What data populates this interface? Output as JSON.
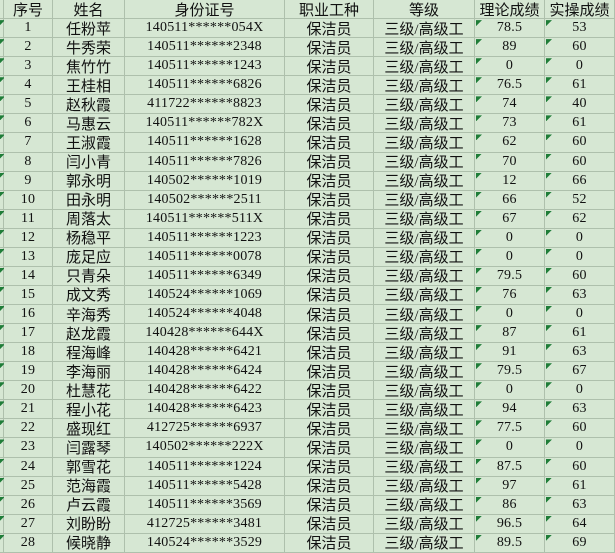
{
  "table": {
    "columns": [
      {
        "key": "index",
        "label": "序号"
      },
      {
        "key": "name",
        "label": "姓名"
      },
      {
        "key": "id_number",
        "label": "身份证号"
      },
      {
        "key": "occupation",
        "label": "职业工种"
      },
      {
        "key": "level",
        "label": "等级"
      },
      {
        "key": "theory_score",
        "label": "理论成绩"
      },
      {
        "key": "practical_score",
        "label": "实操成绩"
      }
    ],
    "rows": [
      {
        "index": "1",
        "name": "任粉苹",
        "id_number": "140511******054X",
        "occupation": "保洁员",
        "level": "三级/高级工",
        "theory_score": "78.5",
        "practical_score": "53"
      },
      {
        "index": "2",
        "name": "牛秀荣",
        "id_number": "140511******2348",
        "occupation": "保洁员",
        "level": "三级/高级工",
        "theory_score": "89",
        "practical_score": "60"
      },
      {
        "index": "3",
        "name": "焦竹竹",
        "id_number": "140511******1243",
        "occupation": "保洁员",
        "level": "三级/高级工",
        "theory_score": "0",
        "practical_score": "0"
      },
      {
        "index": "4",
        "name": "王桂相",
        "id_number": "140511******6826",
        "occupation": "保洁员",
        "level": "三级/高级工",
        "theory_score": "76.5",
        "practical_score": "61"
      },
      {
        "index": "5",
        "name": "赵秋霞",
        "id_number": "411722******8823",
        "occupation": "保洁员",
        "level": "三级/高级工",
        "theory_score": "74",
        "practical_score": "40"
      },
      {
        "index": "6",
        "name": "马惠云",
        "id_number": "140511******782X",
        "occupation": "保洁员",
        "level": "三级/高级工",
        "theory_score": "73",
        "practical_score": "61"
      },
      {
        "index": "7",
        "name": "王淑霞",
        "id_number": "140511******1628",
        "occupation": "保洁员",
        "level": "三级/高级工",
        "theory_score": "62",
        "practical_score": "60"
      },
      {
        "index": "8",
        "name": "闫小青",
        "id_number": "140511******7826",
        "occupation": "保洁员",
        "level": "三级/高级工",
        "theory_score": "70",
        "practical_score": "60"
      },
      {
        "index": "9",
        "name": "郭永明",
        "id_number": "140502******1019",
        "occupation": "保洁员",
        "level": "三级/高级工",
        "theory_score": "12",
        "practical_score": "66"
      },
      {
        "index": "10",
        "name": "田永明",
        "id_number": "140502******2511",
        "occupation": "保洁员",
        "level": "三级/高级工",
        "theory_score": "66",
        "practical_score": "52"
      },
      {
        "index": "11",
        "name": "周落太",
        "id_number": "140511******511X",
        "occupation": "保洁员",
        "level": "三级/高级工",
        "theory_score": "67",
        "practical_score": "62"
      },
      {
        "index": "12",
        "name": "杨稳平",
        "id_number": "140511******1223",
        "occupation": "保洁员",
        "level": "三级/高级工",
        "theory_score": "0",
        "practical_score": "0"
      },
      {
        "index": "13",
        "name": "庞足应",
        "id_number": "140511******0078",
        "occupation": "保洁员",
        "level": "三级/高级工",
        "theory_score": "0",
        "practical_score": "0"
      },
      {
        "index": "14",
        "name": "只青朵",
        "id_number": "140511******6349",
        "occupation": "保洁员",
        "level": "三级/高级工",
        "theory_score": "79.5",
        "practical_score": "60"
      },
      {
        "index": "15",
        "name": "成文秀",
        "id_number": "140524******1069",
        "occupation": "保洁员",
        "level": "三级/高级工",
        "theory_score": "76",
        "practical_score": "63"
      },
      {
        "index": "16",
        "name": "辛海秀",
        "id_number": "140524******4048",
        "occupation": "保洁员",
        "level": "三级/高级工",
        "theory_score": "0",
        "practical_score": "0"
      },
      {
        "index": "17",
        "name": "赵龙霞",
        "id_number": "140428******644X",
        "occupation": "保洁员",
        "level": "三级/高级工",
        "theory_score": "87",
        "practical_score": "61"
      },
      {
        "index": "18",
        "name": "程海峰",
        "id_number": "140428******6421",
        "occupation": "保洁员",
        "level": "三级/高级工",
        "theory_score": "91",
        "practical_score": "63"
      },
      {
        "index": "19",
        "name": "李海丽",
        "id_number": "140428******6424",
        "occupation": "保洁员",
        "level": "三级/高级工",
        "theory_score": "79.5",
        "practical_score": "67"
      },
      {
        "index": "20",
        "name": "杜慧花",
        "id_number": "140428******6422",
        "occupation": "保洁员",
        "level": "三级/高级工",
        "theory_score": "0",
        "practical_score": "0"
      },
      {
        "index": "21",
        "name": "程小花",
        "id_number": "140428******6423",
        "occupation": "保洁员",
        "level": "三级/高级工",
        "theory_score": "94",
        "practical_score": "63"
      },
      {
        "index": "22",
        "name": "盛现红",
        "id_number": "412725******6937",
        "occupation": "保洁员",
        "level": "三级/高级工",
        "theory_score": "77.5",
        "practical_score": "60"
      },
      {
        "index": "23",
        "name": "闫露琴",
        "id_number": "140502******222X",
        "occupation": "保洁员",
        "level": "三级/高级工",
        "theory_score": "0",
        "practical_score": "0"
      },
      {
        "index": "24",
        "name": "郭雪花",
        "id_number": "140511******1224",
        "occupation": "保洁员",
        "level": "三级/高级工",
        "theory_score": "87.5",
        "practical_score": "60"
      },
      {
        "index": "25",
        "name": "范海霞",
        "id_number": "140511******5428",
        "occupation": "保洁员",
        "level": "三级/高级工",
        "theory_score": "97",
        "practical_score": "61"
      },
      {
        "index": "26",
        "name": "卢云霞",
        "id_number": "140511******3569",
        "occupation": "保洁员",
        "level": "三级/高级工",
        "theory_score": "86",
        "practical_score": "63"
      },
      {
        "index": "27",
        "name": "刘盼盼",
        "id_number": "412725******3481",
        "occupation": "保洁员",
        "level": "三级/高级工",
        "theory_score": "96.5",
        "practical_score": "64"
      },
      {
        "index": "28",
        "name": "候晓静",
        "id_number": "140524******3529",
        "occupation": "保洁员",
        "level": "三级/高级工",
        "theory_score": "89.5",
        "practical_score": "69"
      }
    ]
  },
  "icons": {
    "error_triangle": "cell-error-indicator-triangle"
  },
  "colors": {
    "cell_background": "#d6e7d3",
    "gridline": "#aec0ac",
    "error_triangle": "#1f7d38",
    "text": "#111111"
  }
}
